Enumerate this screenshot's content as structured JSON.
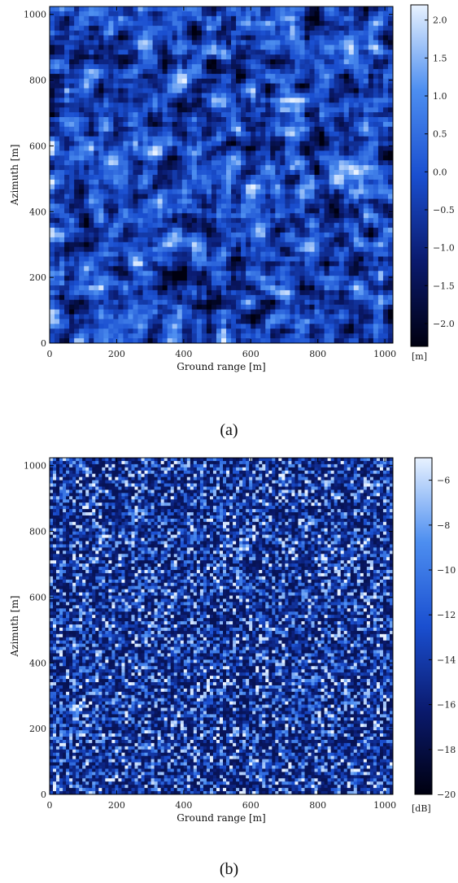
{
  "chart_data": [
    {
      "type": "heatmap",
      "panel_label": "(a)",
      "xlabel": "Ground range [m]",
      "ylabel": "Azimuth [m]",
      "xlim": [
        0,
        1024
      ],
      "ylim": [
        0,
        1024
      ],
      "xticks": [
        0,
        200,
        400,
        600,
        800,
        1000
      ],
      "yticks": [
        0,
        200,
        400,
        600,
        800,
        1000
      ],
      "colorbar": {
        "unit": "[m]",
        "range": [
          -2.3,
          2.2
        ],
        "ticks": [
          2.0,
          1.5,
          1.0,
          0.5,
          0.0,
          -0.5,
          -1.0,
          -1.5,
          -2.0
        ],
        "tick_labels": [
          "2.0",
          "1.5",
          "1.0",
          "0.5",
          "0.0",
          "−0.5",
          "−1.0",
          "−1.5",
          "−2.0"
        ]
      },
      "colormap": [
        "#000010",
        "#0a1a6e",
        "#1a4fd0",
        "#4d8ef0",
        "#e8f2ff"
      ],
      "texture": "smooth"
    },
    {
      "type": "heatmap",
      "panel_label": "(b)",
      "xlabel": "Ground range [m]",
      "ylabel": "Azimuth [m]",
      "xlim": [
        0,
        1024
      ],
      "ylim": [
        0,
        1024
      ],
      "xticks": [
        0,
        200,
        400,
        600,
        800,
        1000
      ],
      "yticks": [
        0,
        200,
        400,
        600,
        800,
        1000
      ],
      "colorbar": {
        "unit": "[dB]",
        "range": [
          -20,
          -5
        ],
        "ticks": [
          -6,
          -8,
          -10,
          -12,
          -14,
          -16,
          -18,
          -20
        ],
        "tick_labels": [
          "−6",
          "−8",
          "−10",
          "−12",
          "−14",
          "−16",
          "−18",
          "−20"
        ]
      },
      "colormap": [
        "#000010",
        "#0a1a6e",
        "#1a4fd0",
        "#4d8ef0",
        "#e8f2ff"
      ],
      "texture": "speckle"
    }
  ]
}
